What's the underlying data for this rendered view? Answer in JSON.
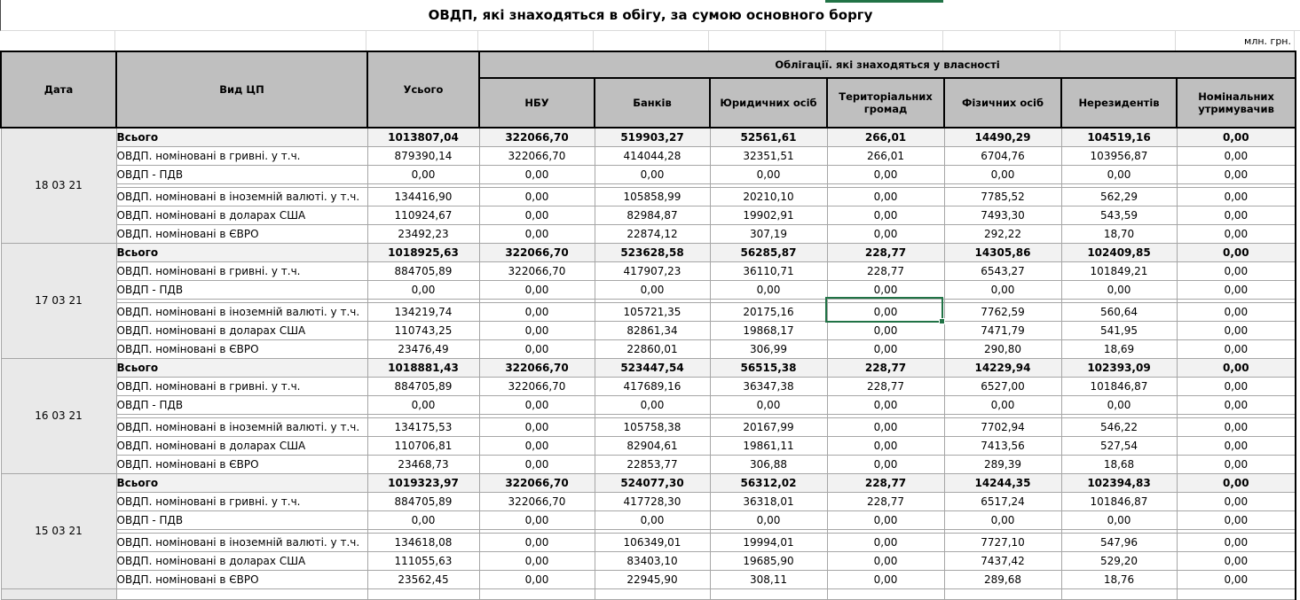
{
  "title": "ОВДП, які знаходяться в обігу, за сумою основного боргу",
  "units_label": "млн. грн.",
  "table": {
    "headers": {
      "date": "Дата",
      "security_type": "Вид ЦП",
      "total": "Усього",
      "ownership_group": "Облігації. які знаходяться у власності",
      "owners": [
        "НБУ",
        "Банків",
        "Юридичних осіб",
        "Територіальних громад",
        "Фізичних осіб",
        "Нерезидентів",
        "Номінальних утримувачив"
      ]
    },
    "row_labels": [
      "Всього",
      "ОВДП. номіновані в гривні. у т.ч.",
      "ОВДП - ПДВ",
      "ОВДП. номіновані в іноземній валюті. у т.ч.",
      "ОВДП. номіновані в доларах США",
      "ОВДП. номіновані в ЄВРО"
    ],
    "groups": [
      {
        "date": "18 03 21",
        "rows": [
          [
            "1013807,04",
            "322066,70",
            "519903,27",
            "52561,61",
            "266,01",
            "14490,29",
            "104519,16",
            "0,00"
          ],
          [
            "879390,14",
            "322066,70",
            "414044,28",
            "32351,51",
            "266,01",
            "6704,76",
            "103956,87",
            "0,00"
          ],
          [
            "0,00",
            "0,00",
            "0,00",
            "0,00",
            "0,00",
            "0,00",
            "0,00",
            "0,00"
          ],
          [
            "134416,90",
            "0,00",
            "105858,99",
            "20210,10",
            "0,00",
            "7785,52",
            "562,29",
            "0,00"
          ],
          [
            "110924,67",
            "0,00",
            "82984,87",
            "19902,91",
            "0,00",
            "7493,30",
            "543,59",
            "0,00"
          ],
          [
            "23492,23",
            "0,00",
            "22874,12",
            "307,19",
            "0,00",
            "292,22",
            "18,70",
            "0,00"
          ]
        ]
      },
      {
        "date": "17 03 21",
        "rows": [
          [
            "1018925,63",
            "322066,70",
            "523628,58",
            "56285,87",
            "228,77",
            "14305,86",
            "102409,85",
            "0,00"
          ],
          [
            "884705,89",
            "322066,70",
            "417907,23",
            "36110,71",
            "228,77",
            "6543,27",
            "101849,21",
            "0,00"
          ],
          [
            "0,00",
            "0,00",
            "0,00",
            "0,00",
            "0,00",
            "0,00",
            "0,00",
            "0,00"
          ],
          [
            "134219,74",
            "0,00",
            "105721,35",
            "20175,16",
            "0,00",
            "7762,59",
            "560,64",
            "0,00"
          ],
          [
            "110743,25",
            "0,00",
            "82861,34",
            "19868,17",
            "0,00",
            "7471,79",
            "541,95",
            "0,00"
          ],
          [
            "23476,49",
            "0,00",
            "22860,01",
            "306,99",
            "0,00",
            "290,80",
            "18,69",
            "0,00"
          ]
        ]
      },
      {
        "date": "16 03 21",
        "rows": [
          [
            "1018881,43",
            "322066,70",
            "523447,54",
            "56515,38",
            "228,77",
            "14229,94",
            "102393,09",
            "0,00"
          ],
          [
            "884705,89",
            "322066,70",
            "417689,16",
            "36347,38",
            "228,77",
            "6527,00",
            "101846,87",
            "0,00"
          ],
          [
            "0,00",
            "0,00",
            "0,00",
            "0,00",
            "0,00",
            "0,00",
            "0,00",
            "0,00"
          ],
          [
            "134175,53",
            "0,00",
            "105758,38",
            "20167,99",
            "0,00",
            "7702,94",
            "546,22",
            "0,00"
          ],
          [
            "110706,81",
            "0,00",
            "82904,61",
            "19861,11",
            "0,00",
            "7413,56",
            "527,54",
            "0,00"
          ],
          [
            "23468,73",
            "0,00",
            "22853,77",
            "306,88",
            "0,00",
            "289,39",
            "18,68",
            "0,00"
          ]
        ]
      },
      {
        "date": "15 03 21",
        "rows": [
          [
            "1019323,97",
            "322066,70",
            "524077,30",
            "56312,02",
            "228,77",
            "14244,35",
            "102394,83",
            "0,00"
          ],
          [
            "884705,89",
            "322066,70",
            "417728,30",
            "36318,01",
            "228,77",
            "6517,24",
            "101846,87",
            "0,00"
          ],
          [
            "0,00",
            "0,00",
            "0,00",
            "0,00",
            "0,00",
            "0,00",
            "0,00",
            "0,00"
          ],
          [
            "134618,08",
            "0,00",
            "106349,01",
            "19994,01",
            "0,00",
            "7727,10",
            "547,96",
            "0,00"
          ],
          [
            "111055,63",
            "0,00",
            "83403,10",
            "19685,90",
            "0,00",
            "7437,42",
            "529,20",
            "0,00"
          ],
          [
            "23562,45",
            "0,00",
            "22945,90",
            "308,11",
            "0,00",
            "289,68",
            "18,76",
            "0,00"
          ]
        ]
      }
    ]
  },
  "selection": {
    "color": "#217346",
    "selected_cell": {
      "group_date": "17 03 21",
      "row_label": "ОВДП. номіновані в іноземній валюті. у т.ч.",
      "column": "Територіальних громад",
      "value": "0,00"
    }
  }
}
